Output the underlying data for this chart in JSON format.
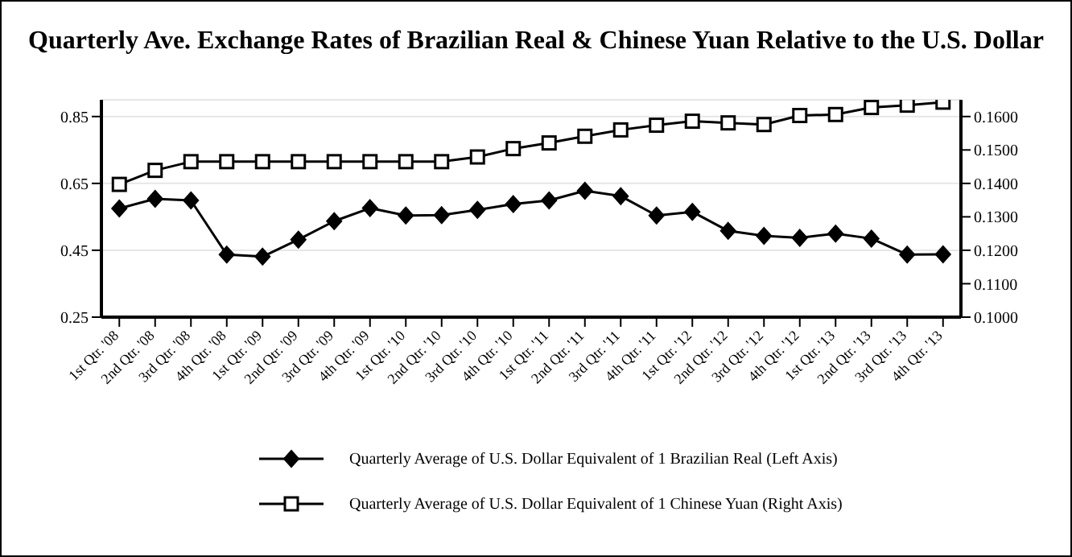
{
  "chart_data": {
    "type": "line",
    "title": "Quarterly Ave. Exchange Rates of Brazilian Real & Chinese Yuan Relative to the U.S. Dollar",
    "categories": [
      "1st Qtr. '08",
      "2nd Qtr. '08",
      "3rd Qtr. '08",
      "4th Qtr. '08",
      "1st Qtr. '09",
      "2nd Qtr. '09",
      "3rd Qtr. '09",
      "4th Qtr. '09",
      "1st Qtr. '10",
      "2nd Qtr. '10",
      "3rd Qtr. '10",
      "4th Qtr. '10",
      "1st Qtr. '11",
      "2nd Qtr. '11",
      "3rd Qtr. '11",
      "4th Qtr. '11",
      "1st Qtr. '12",
      "2nd Qtr. '12",
      "3rd Qtr. '12",
      "4th Qtr. '12",
      "1st Qtr. '13",
      "2nd Qtr. '13",
      "3rd Qtr. '13",
      "4th Qtr. '13"
    ],
    "series": [
      {
        "name": "Quarterly Average of U.S. Dollar Equivalent of 1 Brazilian Real (Left Axis)",
        "color": "#000000",
        "marker": "diamond",
        "values": [
          0.575,
          0.604,
          0.599,
          0.437,
          0.431,
          0.482,
          0.537,
          0.576,
          0.554,
          0.555,
          0.571,
          0.588,
          0.599,
          0.628,
          0.612,
          0.554,
          0.565,
          0.508,
          0.493,
          0.487,
          0.5,
          0.485,
          0.437,
          0.438
        ]
      },
      {
        "name": "Quarterly Average of U.S. Dollar Equivalent of 1 Chinese Yuan (Right Axis)",
        "color": "#000000",
        "marker": "square",
        "axis": "y2",
        "values": [
          0.1397,
          0.1439,
          0.1465,
          0.1465,
          0.1465,
          0.1465,
          0.1465,
          0.1465,
          0.1465,
          0.1465,
          0.1479,
          0.1504,
          0.1521,
          0.1541,
          0.156,
          0.1574,
          0.1586,
          0.1581,
          0.1576,
          0.1603,
          0.1606,
          0.1627,
          0.1634,
          0.1643
        ]
      }
    ],
    "ylim": [
      0.25,
      0.9
    ],
    "yticks": [
      {
        "value": 0.25,
        "label": "0.25"
      },
      {
        "value": 0.45,
        "label": "0.45"
      },
      {
        "value": 0.65,
        "label": "0.65"
      },
      {
        "value": 0.85,
        "label": "0.85"
      }
    ],
    "y2lim": [
      0.1,
      0.165
    ],
    "y2ticks": [
      {
        "value": 0.1,
        "label": "0.1000"
      },
      {
        "value": 0.11,
        "label": "0.1100"
      },
      {
        "value": 0.12,
        "label": "0.1200"
      },
      {
        "value": 0.13,
        "label": "0.1300"
      },
      {
        "value": 0.14,
        "label": "0.1400"
      },
      {
        "value": 0.15,
        "label": "0.1500"
      },
      {
        "value": 0.16,
        "label": "0.1600"
      }
    ],
    "grid": "y",
    "legend": "bottom",
    "line_style": "solid"
  }
}
